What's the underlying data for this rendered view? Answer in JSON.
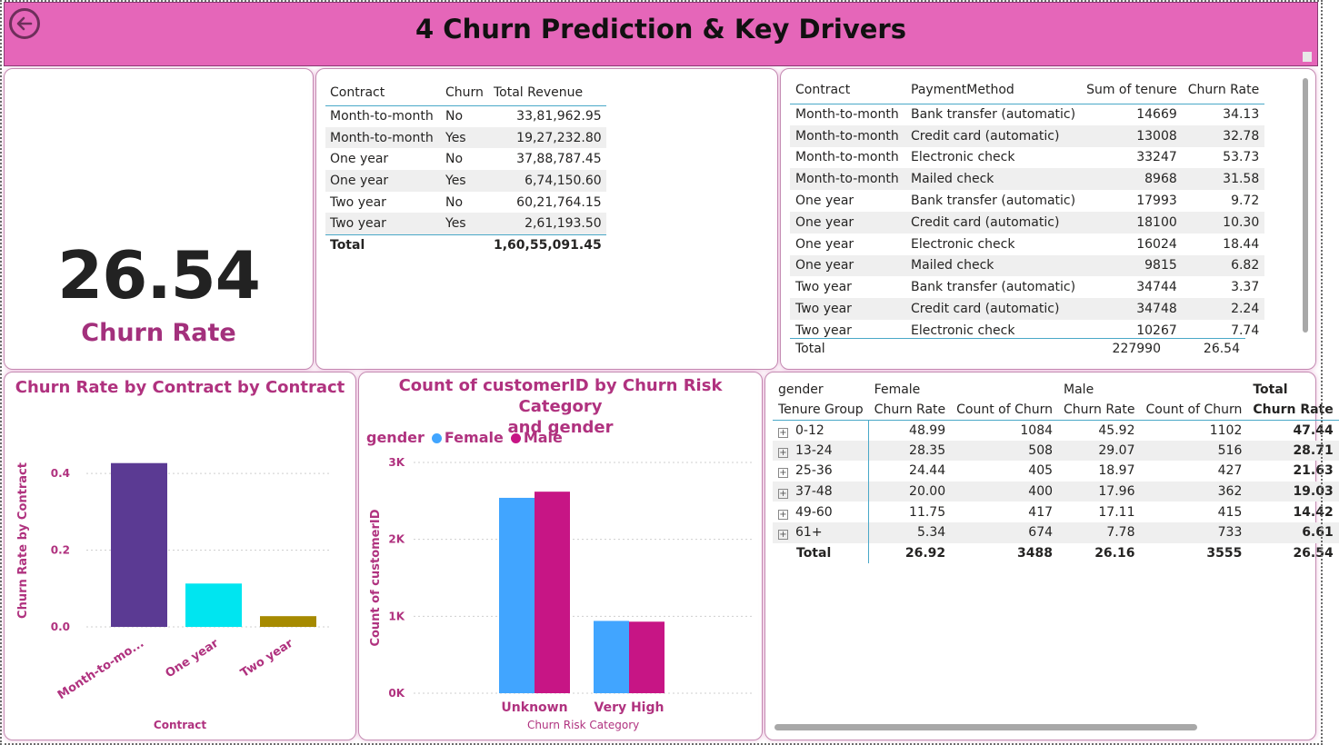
{
  "header": {
    "title": "4 Churn Prediction & Key Drivers",
    "back_icon": "arrow-left-circle-icon",
    "bg_color": "#e566b9"
  },
  "kpi": {
    "value": "26.54",
    "label": "Churn Rate"
  },
  "revenue_table": {
    "columns": [
      "Contract",
      "Churn",
      "Total Revenue"
    ],
    "rows": [
      [
        "Month-to-month",
        "No",
        "33,81,962.95"
      ],
      [
        "Month-to-month",
        "Yes",
        "19,27,232.80"
      ],
      [
        "One year",
        "No",
        "37,88,787.45"
      ],
      [
        "One year",
        "Yes",
        "6,74,150.60"
      ],
      [
        "Two year",
        "No",
        "60,21,764.15"
      ],
      [
        "Two year",
        "Yes",
        "2,61,193.50"
      ]
    ],
    "total": [
      "Total",
      "",
      "1,60,55,091.45"
    ]
  },
  "payment_table": {
    "columns": [
      "Contract",
      "PaymentMethod",
      "Sum of tenure",
      "Churn Rate"
    ],
    "rows": [
      [
        "Month-to-month",
        "Bank transfer (automatic)",
        "14669",
        "34.13"
      ],
      [
        "Month-to-month",
        "Credit card (automatic)",
        "13008",
        "32.78"
      ],
      [
        "Month-to-month",
        "Electronic check",
        "33247",
        "53.73"
      ],
      [
        "Month-to-month",
        "Mailed check",
        "8968",
        "31.58"
      ],
      [
        "One year",
        "Bank transfer (automatic)",
        "17993",
        "9.72"
      ],
      [
        "One year",
        "Credit card (automatic)",
        "18100",
        "10.30"
      ],
      [
        "One year",
        "Electronic check",
        "16024",
        "18.44"
      ],
      [
        "One year",
        "Mailed check",
        "9815",
        "6.82"
      ],
      [
        "Two year",
        "Bank transfer (automatic)",
        "34744",
        "3.37"
      ],
      [
        "Two year",
        "Credit card (automatic)",
        "34748",
        "2.24"
      ],
      [
        "Two year",
        "Electronic check",
        "10267",
        "7.74"
      ]
    ],
    "total": [
      "Total",
      "",
      "227990",
      "26.54"
    ]
  },
  "chart_contract": {
    "title": "Churn Rate by Contract by Contract",
    "xlabel": "Contract",
    "ylabel": "Churn Rate by Contract",
    "ticks": [
      "0.0",
      "0.2",
      "0.4"
    ],
    "categories": [
      "Month-to-mo...",
      "One year",
      "Two year"
    ],
    "colors": [
      "#5b3a93",
      "#00e5f0",
      "#a68a00"
    ]
  },
  "chart_risk": {
    "title_line1": "Count of customerID by Churn Risk Category",
    "title_line2": "and gender",
    "legend_title": "gender",
    "xlabel": "Churn Risk Category",
    "ylabel": "Count of customerID",
    "ticks": [
      "0K",
      "1K",
      "2K",
      "3K"
    ],
    "categories": [
      "Unknown",
      "Very High"
    ],
    "series_names": [
      "Female",
      "Male"
    ],
    "colors": [
      "#41a5ff",
      "#c71585"
    ]
  },
  "matrix": {
    "row_header_top": "gender",
    "row_header": "Tenure Group",
    "groups": [
      "Female",
      "Male",
      "Total"
    ],
    "sub_columns": [
      "Churn Rate",
      "Count of Churn",
      "Churn Rate",
      "Count of Churn",
      "Churn Rate"
    ],
    "rows": [
      [
        "0-12",
        "48.99",
        "1084",
        "45.92",
        "1102",
        "47.44"
      ],
      [
        "13-24",
        "28.35",
        "508",
        "29.07",
        "516",
        "28.71"
      ],
      [
        "25-36",
        "24.44",
        "405",
        "18.97",
        "427",
        "21.63"
      ],
      [
        "37-48",
        "20.00",
        "400",
        "17.96",
        "362",
        "19.03"
      ],
      [
        "49-60",
        "11.75",
        "417",
        "17.11",
        "415",
        "14.42"
      ],
      [
        "61+",
        "5.34",
        "674",
        "7.78",
        "733",
        "6.61"
      ]
    ],
    "total": [
      "Total",
      "26.92",
      "3488",
      "26.16",
      "3555",
      "26.54"
    ],
    "expand_icon": "plus-box-icon"
  },
  "chart_data": [
    {
      "type": "bar",
      "title": "Churn Rate by Contract by Contract",
      "xlabel": "Contract",
      "ylabel": "Churn Rate by Contract",
      "categories": [
        "Month-to-month",
        "One year",
        "Two year"
      ],
      "values": [
        0.427,
        0.113,
        0.028
      ],
      "ylim": [
        0,
        0.45
      ],
      "grid": true,
      "colors": [
        "#5b3a93",
        "#00e5f0",
        "#a68a00"
      ]
    },
    {
      "type": "bar",
      "title": "Count of customerID by Churn Risk Category and gender",
      "xlabel": "Churn Risk Category",
      "ylabel": "Count of customerID",
      "categories": [
        "Unknown",
        "Very High"
      ],
      "series": [
        {
          "name": "Female",
          "values": [
            2540,
            940
          ]
        },
        {
          "name": "Male",
          "values": [
            2620,
            930
          ]
        }
      ],
      "ylim": [
        0,
        3000
      ],
      "grid": true,
      "legend": "top-left",
      "colors": [
        "#41a5ff",
        "#c71585"
      ]
    }
  ]
}
